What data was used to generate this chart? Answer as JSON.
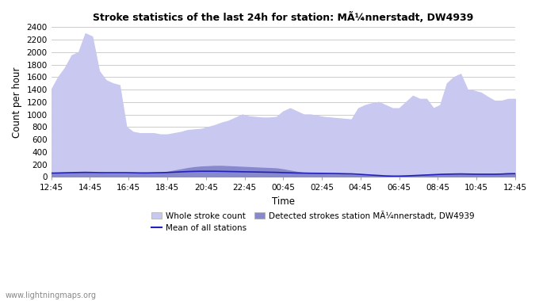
{
  "title": "Stroke statistics of the last 24h for station: MÃ¼nnerstadt, DW4939",
  "xlabel": "Time",
  "ylabel": "Count per hour",
  "watermark": "www.lightningmaps.org",
  "x_labels": [
    "12:45",
    "14:45",
    "16:45",
    "18:45",
    "20:45",
    "22:45",
    "00:45",
    "02:45",
    "04:45",
    "06:45",
    "08:45",
    "10:45",
    "12:45"
  ],
  "ylim": [
    0,
    2400
  ],
  "yticks": [
    0,
    200,
    400,
    600,
    800,
    1000,
    1200,
    1400,
    1600,
    1800,
    2000,
    2200,
    2400
  ],
  "whole_stroke_color": "#c8c8f0",
  "detected_stroke_color": "#8888cc",
  "mean_line_color": "#2222bb",
  "background_color": "#ffffff",
  "grid_color": "#cccccc",
  "x_tick_positions": [
    0,
    1,
    2,
    3,
    4,
    5,
    6,
    7,
    8,
    9,
    10,
    11,
    12
  ],
  "whole_stroke_values": [
    1400,
    1600,
    1750,
    1950,
    2000,
    2300,
    2250,
    1700,
    1550,
    1500,
    1470,
    800,
    720,
    700,
    700,
    700,
    680,
    680,
    700,
    720,
    750,
    760,
    770,
    800,
    830,
    870,
    900,
    950,
    1000,
    970,
    960,
    950,
    950,
    960,
    1050,
    1100,
    1050,
    1000,
    1000,
    980,
    960,
    950,
    940,
    930,
    920,
    1100,
    1150,
    1180,
    1200,
    1150,
    1100,
    1100,
    1200,
    1300,
    1250,
    1250,
    1100,
    1150,
    1500,
    1600,
    1650,
    1400,
    1380,
    1350,
    1280,
    1220,
    1220,
    1250,
    1250
  ],
  "detected_stroke_values": [
    50,
    55,
    60,
    65,
    65,
    65,
    60,
    55,
    50,
    50,
    50,
    50,
    50,
    50,
    55,
    65,
    70,
    80,
    100,
    120,
    140,
    155,
    165,
    170,
    175,
    175,
    170,
    165,
    160,
    155,
    150,
    145,
    140,
    135,
    120,
    100,
    80,
    65,
    60,
    55,
    50,
    45,
    40,
    38,
    35,
    30,
    25,
    20,
    15,
    10,
    10,
    10,
    15,
    20,
    25,
    30,
    35,
    40,
    45,
    50,
    50,
    45,
    45,
    45,
    45,
    45,
    50,
    55,
    55
  ],
  "mean_line_values": [
    60,
    62,
    65,
    68,
    70,
    72,
    70,
    68,
    67,
    67,
    67,
    67,
    65,
    63,
    63,
    65,
    67,
    70,
    75,
    80,
    85,
    88,
    90,
    90,
    90,
    88,
    86,
    84,
    82,
    80,
    78,
    76,
    74,
    72,
    68,
    65,
    62,
    60,
    58,
    57,
    56,
    55,
    53,
    50,
    48,
    42,
    35,
    28,
    22,
    15,
    12,
    12,
    15,
    20,
    25,
    30,
    35,
    40,
    43,
    45,
    47,
    45,
    43,
    42,
    42,
    42,
    45,
    50,
    52
  ]
}
